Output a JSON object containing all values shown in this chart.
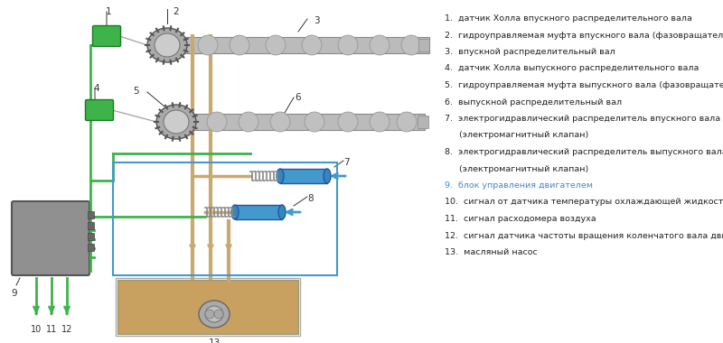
{
  "bg_color": "#ffffff",
  "legend_items": [
    {
      "num": "1.",
      "text": "датчик Холла впускного распределительного вала",
      "color": "#222222",
      "indent": false
    },
    {
      "num": "2.",
      "text": "гидроуправляемая муфта впускного вала (фазовращатель)",
      "color": "#222222",
      "indent": false
    },
    {
      "num": "3.",
      "text": "впускной распределительный вал",
      "color": "#222222",
      "indent": false
    },
    {
      "num": "4.",
      "text": "датчик Холла выпускного распределительного вала",
      "color": "#222222",
      "indent": false
    },
    {
      "num": "5.",
      "text": "гидроуправляемая муфта выпускного вала (фазовращатель)",
      "color": "#222222",
      "indent": false
    },
    {
      "num": "6.",
      "text": "выпускной распределительный вал",
      "color": "#222222",
      "indent": false
    },
    {
      "num": "7.",
      "text": "электрогидравлический распределитель впускного вала",
      "color": "#222222",
      "indent": false
    },
    {
      "num": "",
      "text": "(электромагнитный клапан)",
      "color": "#222222",
      "indent": true
    },
    {
      "num": "8.",
      "text": "электрогидравлический распределитель выпускного вала",
      "color": "#222222",
      "indent": false
    },
    {
      "num": "",
      "text": "(электромагнитный клапан)",
      "color": "#222222",
      "indent": true
    },
    {
      "num": "9.",
      "text": "блок управления двигателем",
      "color": "#4488cc",
      "indent": false
    },
    {
      "num": "10.",
      "text": "сигнал от датчика температуры охлаждающей жидкости",
      "color": "#222222",
      "indent": false
    },
    {
      "num": "11.",
      "text": "сигнал расходомера воздуха",
      "color": "#222222",
      "indent": false
    },
    {
      "num": "12.",
      "text": "сигнал датчика частоты вращения коленчатого вала двигателя",
      "color": "#222222",
      "indent": false
    },
    {
      "num": "13.",
      "text": "масляный насос",
      "color": "#222222",
      "indent": false
    }
  ],
  "green_color": "#3db34a",
  "blue_color": "#4499cc",
  "tan_color": "#c8a96e",
  "shaft_color": "#bbbbbb",
  "shaft_edge": "#888888",
  "ecm_color": "#888888",
  "oil_color": "#c8a060"
}
